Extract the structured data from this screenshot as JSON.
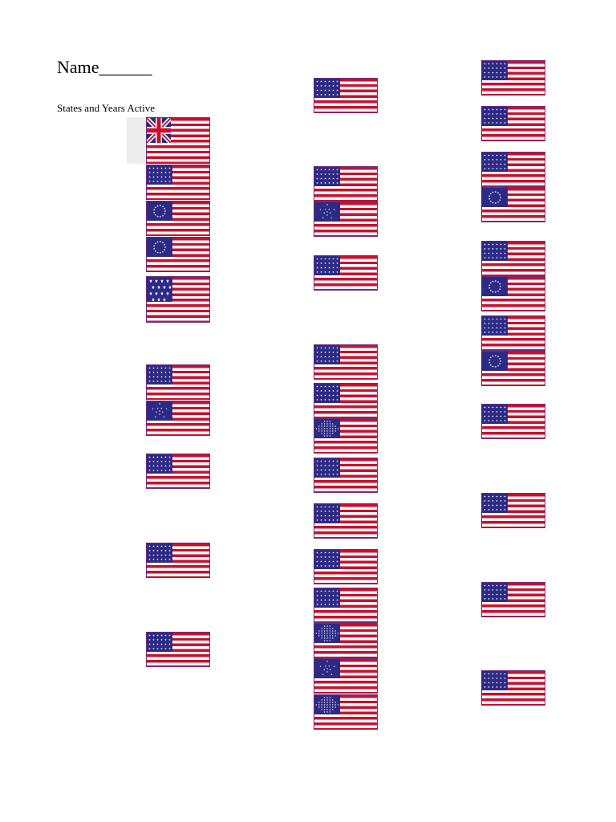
{
  "worksheet": {
    "title": "Name______",
    "subtitle": "States and Years Active"
  },
  "flags": [
    {
      "name": "grand-union-flag",
      "canton": "union"
    },
    {
      "name": "flag-13-stars-rows",
      "canton": "rows"
    },
    {
      "name": "flag-13-stars-circle",
      "canton": "circle"
    },
    {
      "name": "flag-13-stars-circle-b",
      "canton": "circle"
    },
    {
      "name": "flag-15-stars",
      "canton": "big-stars"
    },
    {
      "name": "flag-20-stars",
      "canton": "rows"
    },
    {
      "name": "flag-20-stars-great-star",
      "canton": "great-star"
    },
    {
      "name": "flag-21-stars",
      "canton": "rows"
    },
    {
      "name": "flag-23-stars",
      "canton": "rows"
    },
    {
      "name": "flag-24-stars",
      "canton": "rows"
    },
    {
      "name": "flag-25-stars",
      "canton": "rows"
    },
    {
      "name": "flag-26-stars",
      "canton": "rows"
    },
    {
      "name": "flag-26-stars-great-star",
      "canton": "great-star"
    },
    {
      "name": "flag-27-stars",
      "canton": "rows"
    },
    {
      "name": "flag-28-stars",
      "canton": "rows"
    },
    {
      "name": "flag-29-stars",
      "canton": "rows"
    },
    {
      "name": "flag-30-stars-diamond",
      "canton": "diamond"
    },
    {
      "name": "flag-31-stars",
      "canton": "rows"
    },
    {
      "name": "flag-32-stars",
      "canton": "rows"
    },
    {
      "name": "flag-33-stars",
      "canton": "rows"
    },
    {
      "name": "flag-33-stars-b",
      "canton": "rows"
    },
    {
      "name": "flag-34-stars-diamond",
      "canton": "diamond"
    },
    {
      "name": "flag-34-stars-great-star",
      "canton": "great-star"
    },
    {
      "name": "flag-35-stars-pattern",
      "canton": "diamond"
    },
    {
      "name": "flag-36-stars",
      "canton": "rows"
    },
    {
      "name": "flag-37-stars",
      "canton": "rows"
    },
    {
      "name": "flag-38-stars",
      "canton": "rows"
    },
    {
      "name": "flag-38-stars-circle",
      "canton": "circle"
    },
    {
      "name": "flag-43-stars",
      "canton": "rows"
    },
    {
      "name": "flag-43-stars-circle",
      "canton": "circle"
    },
    {
      "name": "flag-44-stars",
      "canton": "rows"
    },
    {
      "name": "flag-44-stars-circle",
      "canton": "circle"
    },
    {
      "name": "flag-45-stars",
      "canton": "rows"
    },
    {
      "name": "flag-46-stars",
      "canton": "rows"
    },
    {
      "name": "flag-48-stars",
      "canton": "rows"
    },
    {
      "name": "flag-50-stars",
      "canton": "rows"
    }
  ],
  "colors": {
    "red": "#c8102e",
    "white": "#ffffff",
    "blue": "#2d2a86",
    "border": "#6f2a7a"
  }
}
